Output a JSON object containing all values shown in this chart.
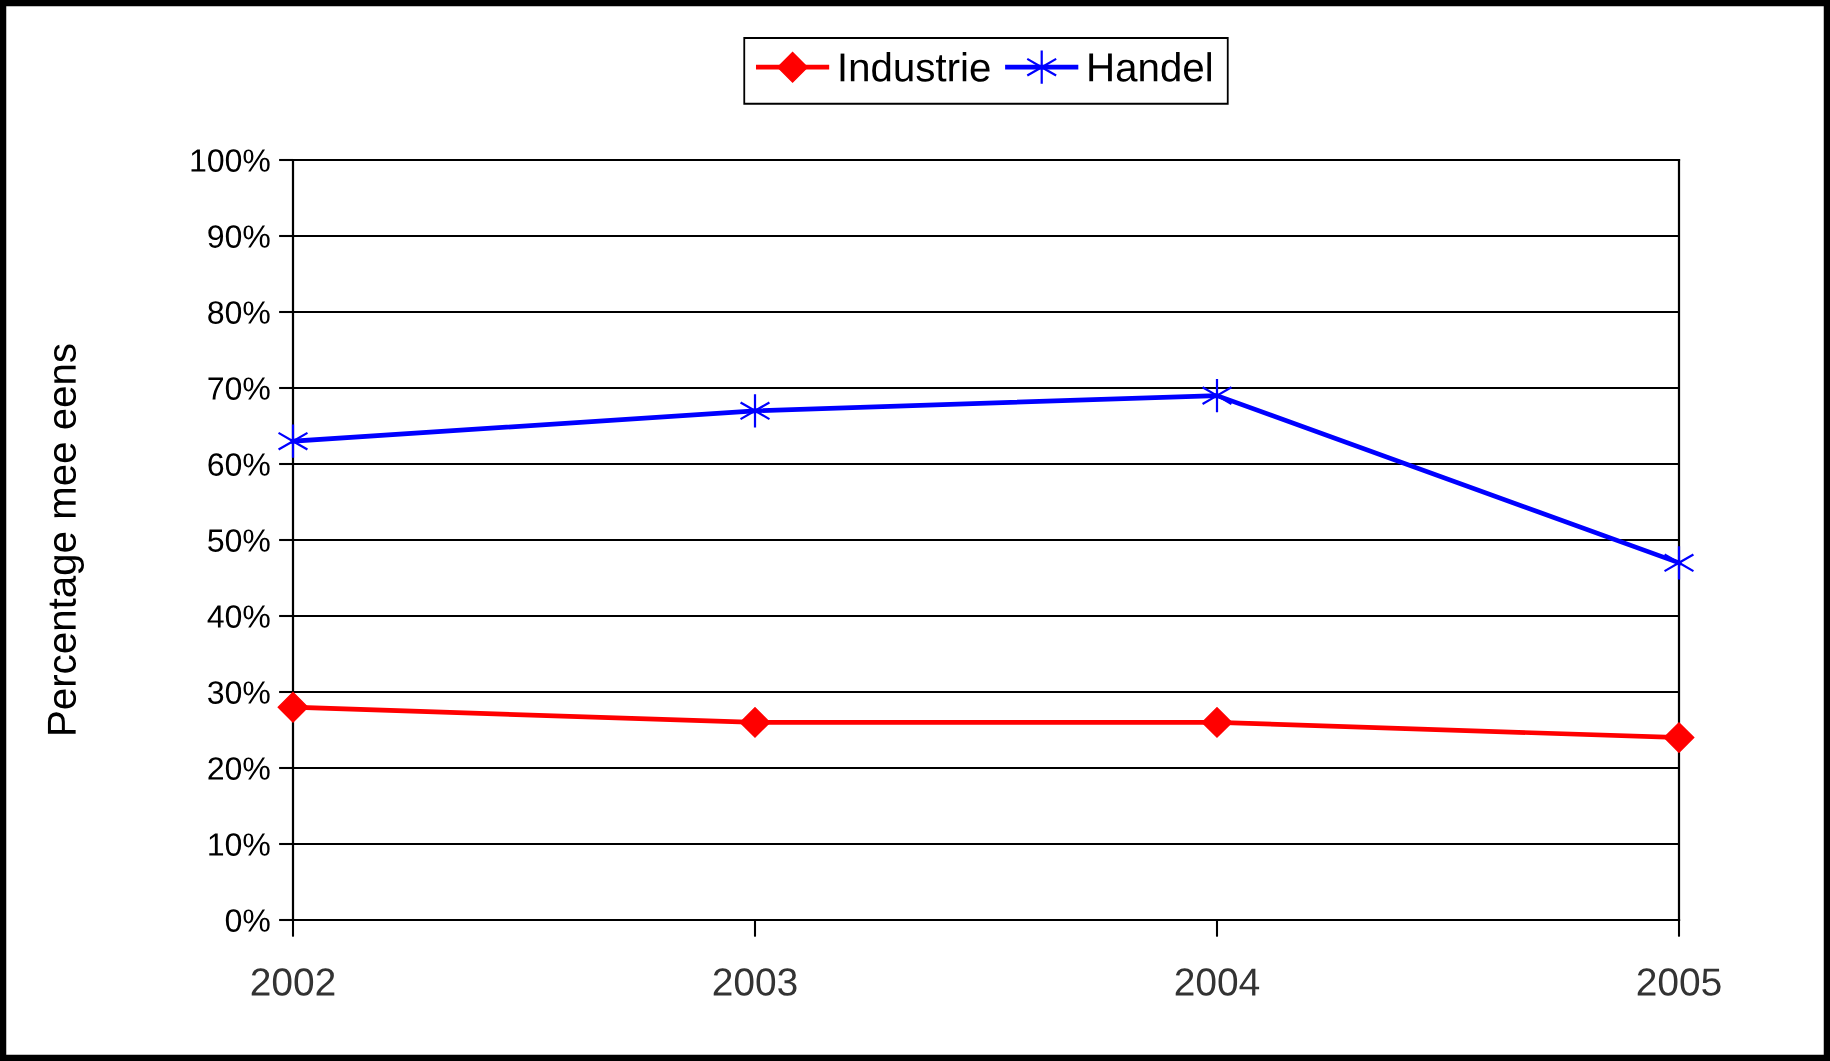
{
  "chart_data": {
    "type": "line",
    "ylabel": "Percentage mee eens",
    "categories": [
      "2002",
      "2003",
      "2004",
      "2005"
    ],
    "series": [
      {
        "name": "Industrie",
        "color": "#ff0000",
        "marker": "diamond",
        "values": [
          28,
          26,
          26,
          24
        ]
      },
      {
        "name": "Handel",
        "color": "#0000ff",
        "marker": "cross",
        "values": [
          63,
          67,
          69,
          47
        ]
      }
    ],
    "ylim": [
      0,
      100
    ],
    "yticks": [
      {
        "value": 0,
        "label": "0%"
      },
      {
        "value": 10,
        "label": "10%"
      },
      {
        "value": 20,
        "label": "20%"
      },
      {
        "value": 30,
        "label": "30%"
      },
      {
        "value": 40,
        "label": "40%"
      },
      {
        "value": 50,
        "label": "50%"
      },
      {
        "value": 60,
        "label": "60%"
      },
      {
        "value": 70,
        "label": "70%"
      },
      {
        "value": 80,
        "label": "80%"
      },
      {
        "value": 90,
        "label": "90%"
      },
      {
        "value": 100,
        "label": "100%"
      }
    ],
    "grid": "y",
    "legend": "top",
    "line_style": "solid"
  }
}
